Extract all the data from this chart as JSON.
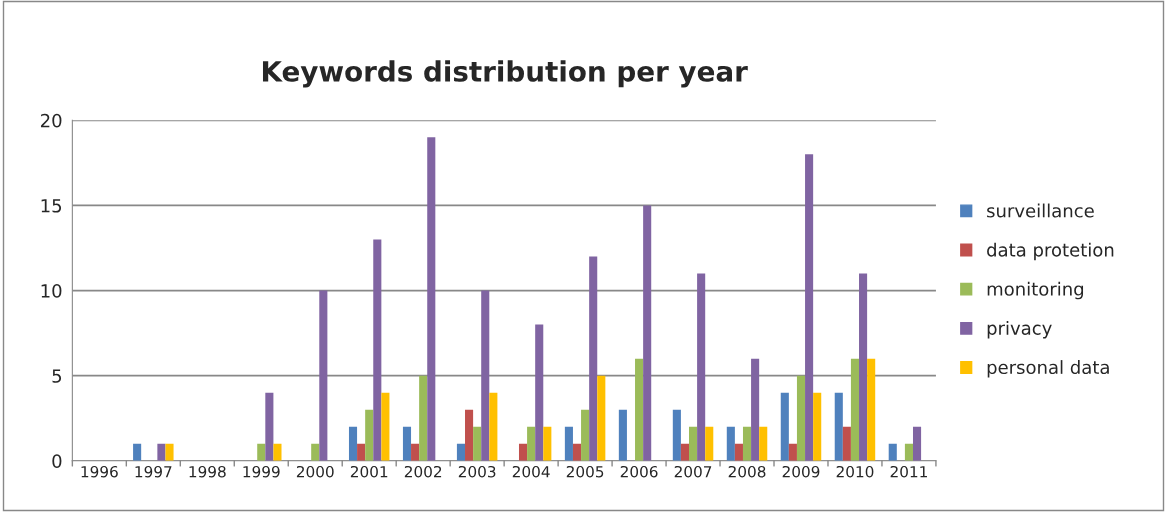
{
  "chart_data": {
    "type": "bar",
    "title": "Keywords distribution per year",
    "categories": [
      "1996",
      "1997",
      "1998",
      "1999",
      "2000",
      "2001",
      "2002",
      "2003",
      "2004",
      "2005",
      "2006",
      "2007",
      "2008",
      "2009",
      "2010",
      "2011"
    ],
    "series": [
      {
        "name": "surveillance",
        "color": "#4f81bd",
        "values": [
          0,
          1,
          0,
          0,
          0,
          2,
          2,
          1,
          0,
          2,
          3,
          3,
          2,
          4,
          4,
          1
        ]
      },
      {
        "name": "data protetion",
        "color": "#c0504d",
        "values": [
          0,
          0,
          0,
          0,
          0,
          1,
          1,
          3,
          1,
          1,
          0,
          1,
          1,
          1,
          2,
          0
        ]
      },
      {
        "name": "monitoring",
        "color": "#9bbb59",
        "values": [
          0,
          0,
          0,
          1,
          1,
          3,
          5,
          2,
          2,
          3,
          6,
          2,
          2,
          5,
          6,
          1
        ]
      },
      {
        "name": "privacy",
        "color": "#8064a2",
        "values": [
          0,
          1,
          0,
          4,
          10,
          13,
          19,
          10,
          8,
          12,
          15,
          11,
          6,
          18,
          11,
          2
        ]
      },
      {
        "name": "personal data",
        "color": "#ffc000",
        "values": [
          0,
          1,
          0,
          1,
          0,
          4,
          0,
          4,
          2,
          5,
          0,
          2,
          2,
          4,
          6,
          0
        ]
      }
    ],
    "ylim": [
      0,
      20
    ],
    "yticks": [
      0,
      5,
      10,
      15,
      20
    ],
    "grid": "y",
    "legend": "right"
  }
}
